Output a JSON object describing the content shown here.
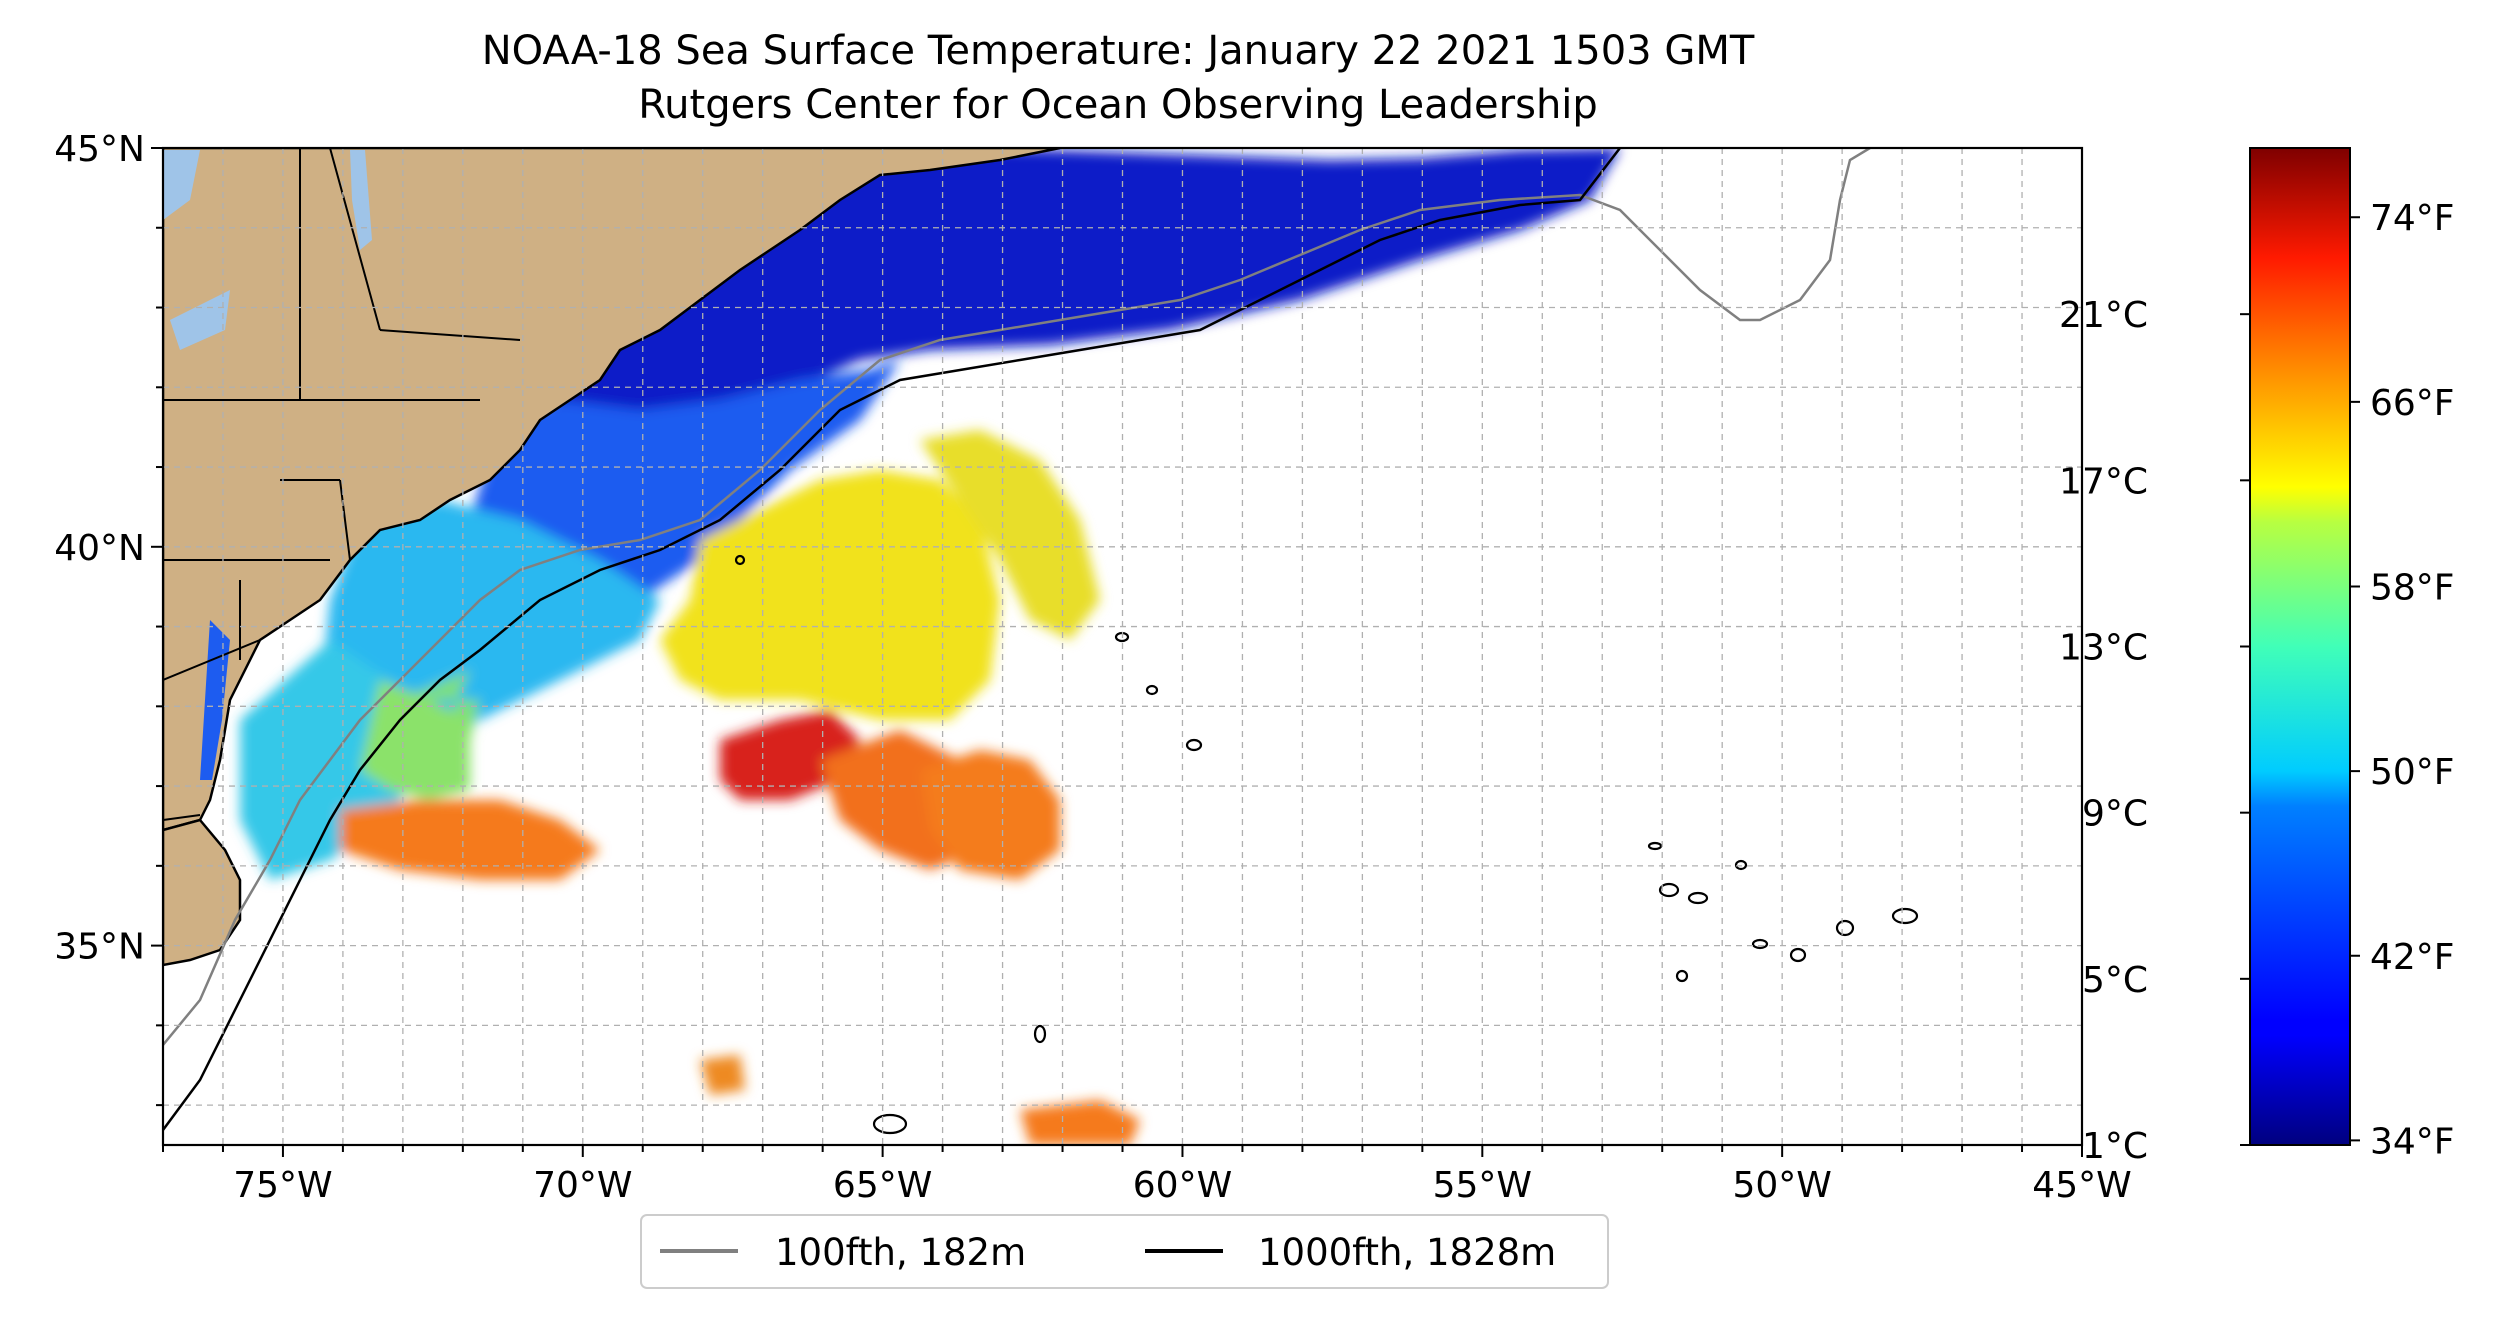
{
  "title": {
    "line1": "NOAA-18 Sea Surface Temperature: January 22 2021 1503 GMT",
    "line2": "Rutgers Center for Ocean Observing Leadership"
  },
  "map": {
    "lon_range": [
      -77,
      -45
    ],
    "lat_range": [
      32.5,
      45
    ],
    "lon_ticks": [
      {
        "value": -75,
        "label": "75°W"
      },
      {
        "value": -70,
        "label": "70°W"
      },
      {
        "value": -65,
        "label": "65°W"
      },
      {
        "value": -60,
        "label": "60°W"
      },
      {
        "value": -55,
        "label": "55°W"
      },
      {
        "value": -50,
        "label": "50°W"
      },
      {
        "value": -45,
        "label": "45°W"
      }
    ],
    "lat_ticks": [
      {
        "value": 45,
        "label": "45°N"
      },
      {
        "value": 40,
        "label": "40°N"
      },
      {
        "value": 35,
        "label": "35°N"
      }
    ],
    "gridlines": "dashed",
    "land_color": "#cfb084",
    "lake_color": "#9fc4e8",
    "colors": {
      "blue_dark": "#0a1ac8",
      "blue": "#1d5cf0",
      "cyan": "#2ab8f0",
      "green": "#7ee07a",
      "yellow": "#f1e21d",
      "orange": "#f57a1c",
      "red": "#d8201a"
    }
  },
  "colorbar": {
    "colormap": "jet",
    "range_c": [
      1,
      25
    ],
    "celsius_ticks": [
      {
        "value": 1,
        "label": "1°C"
      },
      {
        "value": 5,
        "label": "5°C"
      },
      {
        "value": 9,
        "label": "9°C"
      },
      {
        "value": 13,
        "label": "13°C"
      },
      {
        "value": 17,
        "label": "17°C"
      },
      {
        "value": 21,
        "label": "21°C"
      }
    ],
    "fahrenheit_ticks": [
      {
        "value": 34,
        "label": "34°F"
      },
      {
        "value": 42,
        "label": "42°F"
      },
      {
        "value": 50,
        "label": "50°F"
      },
      {
        "value": 58,
        "label": "58°F"
      },
      {
        "value": 66,
        "label": "66°F"
      },
      {
        "value": 74,
        "label": "74°F"
      }
    ]
  },
  "legend": {
    "position": "bottom-center",
    "items": [
      {
        "label": "100fth, 182m",
        "color": "#808080"
      },
      {
        "label": "1000fth, 1828m",
        "color": "#000000"
      }
    ]
  }
}
